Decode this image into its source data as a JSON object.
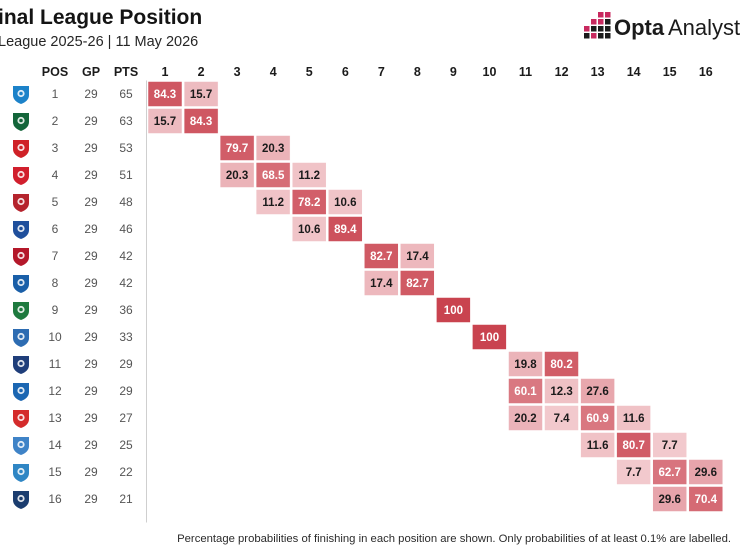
{
  "title": "inal League Position",
  "subtitle": "League 2025-26 | 11 May 2026",
  "brand": {
    "bold": "Opta",
    "light": "Analyst",
    "accent": "#c8295f"
  },
  "footnote": "Percentage probabilities of finishing in each position are shown. Only probabilities of at least 0.1% are labelled.",
  "columns": {
    "pos": "POS",
    "gp": "GP",
    "pts": "PTS"
  },
  "colors": {
    "cell_low": "#f7dadd",
    "cell_high": "#c9434f",
    "cell_border": "#ffffff",
    "text_dark": "#1b1b1b",
    "text_light": "#ffffff"
  },
  "teams": [
    {
      "pos": "1",
      "gp": "29",
      "pts": "65",
      "badge_icon": "zenit-badge-icon",
      "badge_color": "#1c82c9"
    },
    {
      "pos": "2",
      "gp": "29",
      "pts": "63",
      "badge_icon": "krasnodar-badge-icon",
      "badge_color": "#13653a"
    },
    {
      "pos": "3",
      "gp": "29",
      "pts": "53",
      "badge_icon": "lokomotiv-badge-icon",
      "badge_color": "#cf2127"
    },
    {
      "pos": "4",
      "gp": "29",
      "pts": "51",
      "badge_icon": "spartak-badge-icon",
      "badge_color": "#d11f2d"
    },
    {
      "pos": "5",
      "gp": "29",
      "pts": "48",
      "badge_icon": "cska-badge-icon",
      "badge_color": "#b5242d"
    },
    {
      "pos": "6",
      "gp": "29",
      "pts": "46",
      "badge_icon": "baltika-badge-icon",
      "badge_color": "#1f4f9c"
    },
    {
      "pos": "7",
      "gp": "29",
      "pts": "42",
      "badge_icon": "rubin-badge-icon",
      "badge_color": "#b4182a"
    },
    {
      "pos": "8",
      "gp": "29",
      "pts": "42",
      "badge_icon": "dynamo-badge-icon",
      "badge_color": "#1a5fa8"
    },
    {
      "pos": "9",
      "gp": "29",
      "pts": "36",
      "badge_icon": "akhmat-badge-icon",
      "badge_color": "#1e7a3e"
    },
    {
      "pos": "10",
      "gp": "29",
      "pts": "33",
      "badge_icon": "rostov-badge-icon",
      "badge_color": "#2d6cb2"
    },
    {
      "pos": "11",
      "gp": "29",
      "pts": "29",
      "badge_icon": "akron-badge-icon",
      "badge_color": "#1f3e7a"
    },
    {
      "pos": "12",
      "gp": "29",
      "pts": "29",
      "badge_icon": "krylia-badge-icon",
      "badge_color": "#1b66b2"
    },
    {
      "pos": "13",
      "gp": "29",
      "pts": "27",
      "badge_icon": "orenburg-badge-icon",
      "badge_color": "#d42b2b"
    },
    {
      "pos": "14",
      "gp": "29",
      "pts": "25",
      "badge_icon": "dynamo-mkh-badge-icon",
      "badge_color": "#3f83c7"
    },
    {
      "pos": "15",
      "gp": "29",
      "pts": "22",
      "badge_icon": "sochi-badge-icon",
      "badge_color": "#2f86c4"
    },
    {
      "pos": "16",
      "gp": "29",
      "pts": "21",
      "badge_icon": "pari-nn-badge-icon",
      "badge_color": "#1b3d6f"
    }
  ],
  "chart_data": {
    "type": "heatmap",
    "x_categories": [
      "1",
      "2",
      "3",
      "4",
      "5",
      "6",
      "7",
      "8",
      "9",
      "10",
      "11",
      "12",
      "13",
      "14",
      "15",
      "16"
    ],
    "y_categories": [
      "1",
      "2",
      "3",
      "4",
      "5",
      "6",
      "7",
      "8",
      "9",
      "10",
      "11",
      "12",
      "13",
      "14",
      "15",
      "16"
    ],
    "cells": [
      {
        "row": 0,
        "col": 0,
        "value": 84.3,
        "label": "84.3"
      },
      {
        "row": 0,
        "col": 1,
        "value": 15.7,
        "label": "15.7"
      },
      {
        "row": 1,
        "col": 0,
        "value": 15.7,
        "label": "15.7"
      },
      {
        "row": 1,
        "col": 1,
        "value": 84.3,
        "label": "84.3"
      },
      {
        "row": 2,
        "col": 2,
        "value": 79.7,
        "label": "79.7"
      },
      {
        "row": 2,
        "col": 3,
        "value": 20.3,
        "label": "20.3"
      },
      {
        "row": 3,
        "col": 2,
        "value": 20.3,
        "label": "20.3"
      },
      {
        "row": 3,
        "col": 3,
        "value": 68.5,
        "label": "68.5"
      },
      {
        "row": 3,
        "col": 4,
        "value": 11.2,
        "label": "11.2"
      },
      {
        "row": 4,
        "col": 3,
        "value": 11.2,
        "label": "11.2"
      },
      {
        "row": 4,
        "col": 4,
        "value": 78.2,
        "label": "78.2"
      },
      {
        "row": 4,
        "col": 5,
        "value": 10.6,
        "label": "10.6"
      },
      {
        "row": 5,
        "col": 4,
        "value": 10.6,
        "label": "10.6"
      },
      {
        "row": 5,
        "col": 5,
        "value": 89.4,
        "label": "89.4"
      },
      {
        "row": 6,
        "col": 6,
        "value": 82.7,
        "label": "82.7"
      },
      {
        "row": 6,
        "col": 7,
        "value": 17.4,
        "label": "17.4"
      },
      {
        "row": 7,
        "col": 6,
        "value": 17.4,
        "label": "17.4"
      },
      {
        "row": 7,
        "col": 7,
        "value": 82.7,
        "label": "82.7"
      },
      {
        "row": 8,
        "col": 8,
        "value": 100,
        "label": "100"
      },
      {
        "row": 9,
        "col": 9,
        "value": 100,
        "label": "100"
      },
      {
        "row": 10,
        "col": 10,
        "value": 19.8,
        "label": "19.8"
      },
      {
        "row": 10,
        "col": 11,
        "value": 80.2,
        "label": "80.2"
      },
      {
        "row": 11,
        "col": 10,
        "value": 60.1,
        "label": "60.1"
      },
      {
        "row": 11,
        "col": 11,
        "value": 12.3,
        "label": "12.3"
      },
      {
        "row": 11,
        "col": 12,
        "value": 27.6,
        "label": "27.6"
      },
      {
        "row": 12,
        "col": 10,
        "value": 20.2,
        "label": "20.2"
      },
      {
        "row": 12,
        "col": 11,
        "value": 7.4,
        "label": "7.4"
      },
      {
        "row": 12,
        "col": 12,
        "value": 60.9,
        "label": "60.9"
      },
      {
        "row": 12,
        "col": 13,
        "value": 11.6,
        "label": "11.6"
      },
      {
        "row": 13,
        "col": 12,
        "value": 11.6,
        "label": "11.6"
      },
      {
        "row": 13,
        "col": 13,
        "value": 80.7,
        "label": "80.7"
      },
      {
        "row": 13,
        "col": 14,
        "value": 7.7,
        "label": "7.7"
      },
      {
        "row": 14,
        "col": 13,
        "value": 7.7,
        "label": "7.7"
      },
      {
        "row": 14,
        "col": 14,
        "value": 62.7,
        "label": "62.7"
      },
      {
        "row": 14,
        "col": 15,
        "value": 29.6,
        "label": "29.6"
      },
      {
        "row": 15,
        "col": 14,
        "value": 29.6,
        "label": "29.6"
      },
      {
        "row": 15,
        "col": 15,
        "value": 70.4,
        "label": "70.4"
      }
    ],
    "value_range": [
      0,
      100
    ]
  }
}
